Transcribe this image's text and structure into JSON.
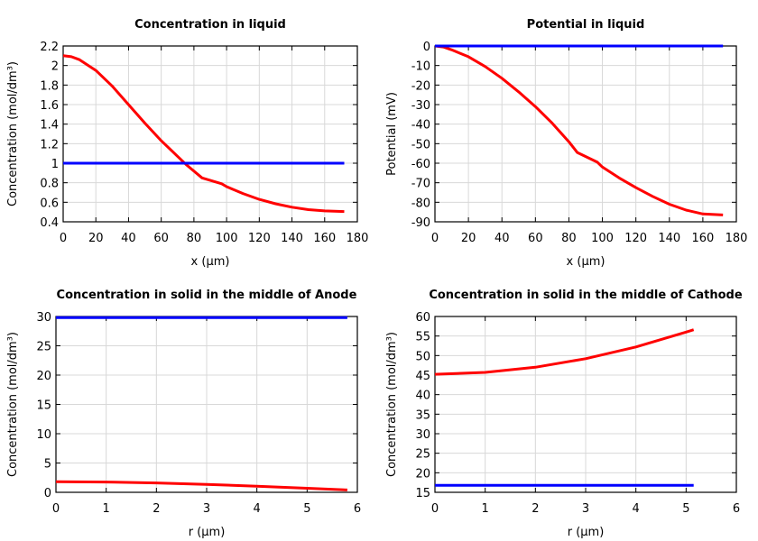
{
  "chart_data": [
    {
      "type": "line",
      "title": "Concentration in liquid",
      "xlabel": "x (µm)",
      "ylabel": "Concentration (mol/dm³)",
      "xlim": [
        0,
        180
      ],
      "ylim": [
        0.4,
        2.2
      ],
      "xticks": [
        0,
        20,
        40,
        60,
        80,
        100,
        120,
        140,
        160,
        180
      ],
      "xtick_labels": [
        "0",
        "20",
        "40",
        "60",
        "80",
        "100",
        "120",
        "140",
        "160",
        "180"
      ],
      "yticks": [
        0.4,
        0.6,
        0.8,
        1,
        1.2,
        1.4,
        1.6,
        1.8,
        2,
        2.2
      ],
      "ytick_labels": [
        "0.4",
        "0.6",
        "0.8",
        "1",
        "1.2",
        "1.4",
        "1.6",
        "1.8",
        "2",
        "2.2"
      ],
      "grid": true,
      "series": [
        {
          "color": "#ff0000",
          "x": [
            0,
            5,
            10,
            20,
            30,
            40,
            50,
            60,
            70,
            75,
            85,
            97,
            100,
            110,
            120,
            130,
            140,
            150,
            160,
            172
          ],
          "y": [
            2.1,
            2.09,
            2.06,
            1.95,
            1.79,
            1.6,
            1.41,
            1.23,
            1.07,
            0.99,
            0.85,
            0.79,
            0.76,
            0.69,
            0.63,
            0.585,
            0.55,
            0.525,
            0.512,
            0.505
          ]
        },
        {
          "color": "#0000ff",
          "x": [
            0,
            172
          ],
          "y": [
            1,
            1
          ]
        }
      ]
    },
    {
      "type": "line",
      "title": "Potential in liquid",
      "xlabel": "x (µm)",
      "ylabel": "Potential (mV)",
      "xlim": [
        0,
        180
      ],
      "ylim": [
        -90,
        0
      ],
      "xticks": [
        0,
        20,
        40,
        60,
        80,
        100,
        120,
        140,
        160,
        180
      ],
      "xtick_labels": [
        "0",
        "20",
        "40",
        "60",
        "80",
        "100",
        "120",
        "140",
        "160",
        "180"
      ],
      "yticks": [
        -90,
        -80,
        -70,
        -60,
        -50,
        -40,
        -30,
        -20,
        -10,
        0
      ],
      "ytick_labels": [
        "-90",
        "-80",
        "-70",
        "-60",
        "-50",
        "-40",
        "-30",
        "-20",
        "-10",
        "0"
      ],
      "grid": true,
      "series": [
        {
          "color": "#ff0000",
          "x": [
            0,
            5,
            10,
            20,
            30,
            40,
            50,
            60,
            70,
            80,
            85,
            97,
            100,
            110,
            120,
            130,
            140,
            150,
            160,
            172
          ],
          "y": [
            0,
            -0.5,
            -2,
            -5.5,
            -10.5,
            -16.5,
            -23.5,
            -31,
            -39.5,
            -49,
            -54.5,
            -59.5,
            -62,
            -67.5,
            -72.5,
            -77,
            -81,
            -84,
            -86,
            -86.5
          ]
        },
        {
          "color": "#0000ff",
          "x": [
            0,
            172
          ],
          "y": [
            0,
            0
          ]
        }
      ]
    },
    {
      "type": "line",
      "title": "Concentration in solid in the middle of Anode",
      "xlabel": "r (µm)",
      "ylabel": "Concentration (mol/dm³)",
      "xlim": [
        0,
        6
      ],
      "ylim": [
        0,
        30
      ],
      "xticks": [
        0,
        1,
        2,
        3,
        4,
        5,
        6
      ],
      "xtick_labels": [
        "0",
        "1",
        "2",
        "3",
        "4",
        "5",
        "6"
      ],
      "yticks": [
        0,
        5,
        10,
        15,
        20,
        25,
        30
      ],
      "ytick_labels": [
        "0",
        "5",
        "10",
        "15",
        "20",
        "25",
        "30"
      ],
      "grid": true,
      "series": [
        {
          "color": "#ff0000",
          "x": [
            0,
            1,
            2,
            3,
            4,
            5,
            5.8
          ],
          "y": [
            1.8,
            1.75,
            1.6,
            1.35,
            1.05,
            0.7,
            0.4
          ]
        },
        {
          "color": "#0000ff",
          "x": [
            0,
            5.8
          ],
          "y": [
            29.8,
            29.8
          ]
        }
      ]
    },
    {
      "type": "line",
      "title": "Concentration in solid in the middle of Cathode",
      "xlabel": "r (µm)",
      "ylabel": "Concentration (mol/dm³)",
      "xlim": [
        0,
        6
      ],
      "ylim": [
        15,
        60
      ],
      "xticks": [
        0,
        1,
        2,
        3,
        4,
        5,
        6
      ],
      "xtick_labels": [
        "0",
        "1",
        "2",
        "3",
        "4",
        "5",
        "6"
      ],
      "yticks": [
        15,
        20,
        25,
        30,
        35,
        40,
        45,
        50,
        55,
        60
      ],
      "ytick_labels": [
        "15",
        "20",
        "25",
        "30",
        "35",
        "40",
        "45",
        "50",
        "55",
        "60"
      ],
      "grid": true,
      "series": [
        {
          "color": "#ff0000",
          "x": [
            0,
            1,
            2,
            3,
            4,
            5,
            5.15
          ],
          "y": [
            45.2,
            45.7,
            47,
            49.2,
            52.2,
            56,
            56.6
          ]
        },
        {
          "color": "#0000ff",
          "x": [
            0,
            5.15
          ],
          "y": [
            16.8,
            16.8
          ]
        }
      ]
    }
  ]
}
